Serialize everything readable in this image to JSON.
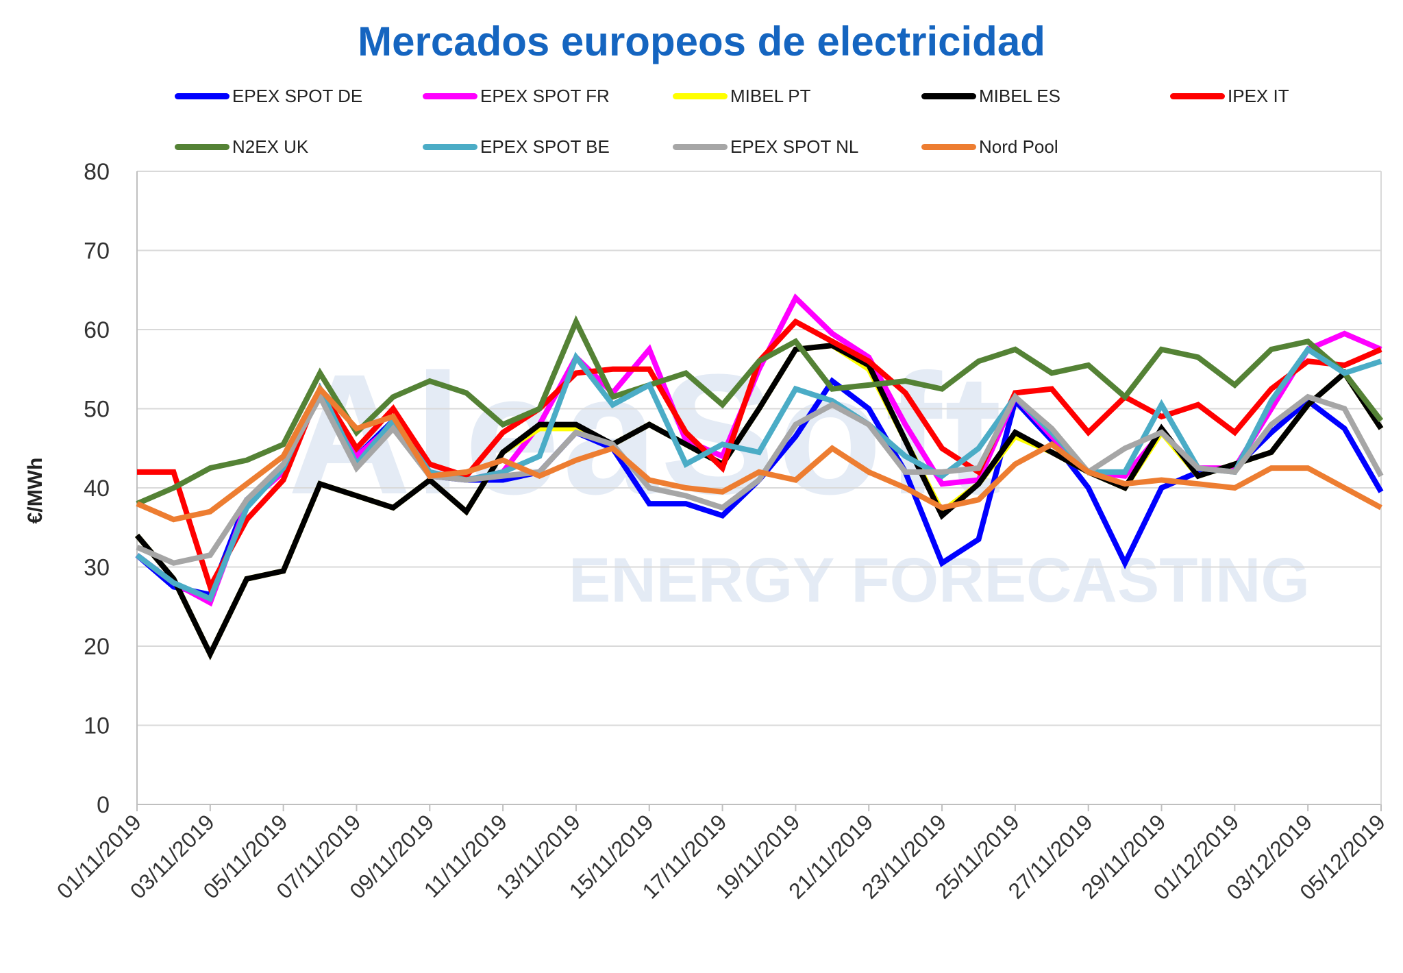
{
  "title": "Mercados europeos de electricidad",
  "watermark": {
    "brand": "AleaSoft",
    "tagline": "ENERGY FORECASTING"
  },
  "chart_data": {
    "type": "line",
    "title": "Mercados europeos de electricidad",
    "xlabel": "",
    "ylabel": "€/MWh",
    "ylim": [
      0,
      80
    ],
    "yticks": [
      "0",
      "10",
      "20",
      "30",
      "40",
      "50",
      "60",
      "70",
      "80"
    ],
    "grid": true,
    "legend_position": "top",
    "x": [
      "01/11/2019",
      "02/11/2019",
      "03/11/2019",
      "04/11/2019",
      "05/11/2019",
      "06/11/2019",
      "07/11/2019",
      "08/11/2019",
      "09/11/2019",
      "10/11/2019",
      "11/11/2019",
      "12/11/2019",
      "13/11/2019",
      "14/11/2019",
      "15/11/2019",
      "16/11/2019",
      "17/11/2019",
      "18/11/2019",
      "19/11/2019",
      "20/11/2019",
      "21/11/2019",
      "22/11/2019",
      "23/11/2019",
      "24/11/2019",
      "25/11/2019",
      "26/11/2019",
      "27/11/2019",
      "28/11/2019",
      "29/11/2019",
      "30/11/2019",
      "01/12/2019",
      "02/12/2019",
      "03/12/2019",
      "04/12/2019",
      "05/12/2019"
    ],
    "xticks": [
      "01/11/2019",
      "03/11/2019",
      "05/11/2019",
      "07/11/2019",
      "09/11/2019",
      "11/11/2019",
      "13/11/2019",
      "15/11/2019",
      "17/11/2019",
      "19/11/2019",
      "21/11/2019",
      "23/11/2019",
      "25/11/2019",
      "27/11/2019",
      "29/11/2019",
      "01/12/2019",
      "03/12/2019",
      "05/12/2019"
    ],
    "series": [
      {
        "name": "EPEX SPOT DE",
        "color": "#0000ff",
        "values": [
          31.5,
          27.5,
          26.5,
          38.5,
          42.5,
          52.0,
          44.0,
          48.5,
          41.5,
          41.0,
          41.0,
          42.0,
          47.0,
          45.0,
          38.0,
          38.0,
          36.5,
          41.0,
          46.5,
          53.5,
          50.0,
          42.0,
          30.5,
          33.5,
          51.0,
          46.0,
          40.0,
          30.5,
          40.0,
          42.0,
          42.5,
          47.0,
          51.0,
          47.5,
          39.5
        ]
      },
      {
        "name": "EPEX SPOT FR",
        "color": "#ff00ff",
        "values": [
          31.5,
          28.0,
          25.5,
          38.0,
          42.0,
          52.0,
          44.0,
          48.0,
          42.0,
          41.0,
          42.0,
          48.0,
          56.5,
          52.0,
          57.5,
          46.0,
          44.0,
          55.0,
          64.0,
          59.5,
          56.5,
          48.0,
          40.5,
          41.0,
          51.5,
          46.5,
          42.0,
          41.5,
          47.0,
          42.5,
          42.5,
          50.0,
          57.5,
          59.5,
          57.5
        ]
      },
      {
        "name": "MIBEL PT",
        "color": "#ffff00",
        "values": [
          34.0,
          28.5,
          19.0,
          28.5,
          29.5,
          40.5,
          39.0,
          37.5,
          41.0,
          37.0,
          44.5,
          47.5,
          47.5,
          45.5,
          48.0,
          45.5,
          43.0,
          50.0,
          57.5,
          58.0,
          55.0,
          46.0,
          37.0,
          40.5,
          46.5,
          44.5,
          42.0,
          40.0,
          47.0,
          41.5,
          43.0,
          44.5,
          50.5,
          54.5,
          47.5
        ]
      },
      {
        "name": "MIBEL ES",
        "color": "#000000",
        "values": [
          34.0,
          28.5,
          19.0,
          28.5,
          29.5,
          40.5,
          39.0,
          37.5,
          41.0,
          37.0,
          44.5,
          48.0,
          48.0,
          45.5,
          48.0,
          45.5,
          43.0,
          50.0,
          57.5,
          58.0,
          55.5,
          46.0,
          36.5,
          40.5,
          47.0,
          44.5,
          42.0,
          40.0,
          47.5,
          41.5,
          43.0,
          44.5,
          50.5,
          54.5,
          47.5
        ]
      },
      {
        "name": "IPEX IT",
        "color": "#ff0000",
        "values": [
          42.0,
          42.0,
          27.5,
          36.0,
          41.0,
          52.5,
          45.0,
          50.0,
          43.0,
          41.5,
          47.0,
          50.0,
          54.5,
          55.0,
          55.0,
          47.0,
          42.5,
          56.0,
          61.0,
          58.5,
          56.0,
          52.0,
          45.0,
          42.0,
          52.0,
          52.5,
          47.0,
          51.5,
          49.0,
          50.5,
          47.0,
          52.5,
          56.0,
          55.5,
          57.5
        ]
      },
      {
        "name": "N2EX UK",
        "color": "#548235",
        "values": [
          38.0,
          40.0,
          42.5,
          43.5,
          45.5,
          54.5,
          47.0,
          51.5,
          53.5,
          52.0,
          48.0,
          50.0,
          61.0,
          51.5,
          53.0,
          54.5,
          50.5,
          56.0,
          58.5,
          52.5,
          53.0,
          53.5,
          52.5,
          56.0,
          57.5,
          54.5,
          55.5,
          51.5,
          57.5,
          56.5,
          53.0,
          57.5,
          58.5,
          54.5,
          48.5
        ]
      },
      {
        "name": "EPEX SPOT BE",
        "color": "#4bacc6",
        "values": [
          31.5,
          28.0,
          26.0,
          37.5,
          42.5,
          52.5,
          43.0,
          48.5,
          42.0,
          41.0,
          42.0,
          44.0,
          56.5,
          50.5,
          53.0,
          43.0,
          45.5,
          44.5,
          52.5,
          51.0,
          48.0,
          44.0,
          41.5,
          45.0,
          51.5,
          47.0,
          42.0,
          42.0,
          50.5,
          42.5,
          42.0,
          51.0,
          57.5,
          54.5,
          56.0
        ]
      },
      {
        "name": "EPEX SPOT NL",
        "color": "#a6a6a6",
        "values": [
          32.5,
          30.5,
          31.5,
          38.5,
          43.0,
          51.5,
          42.5,
          47.5,
          41.5,
          41.0,
          41.5,
          42.0,
          47.0,
          45.5,
          40.0,
          39.0,
          37.5,
          41.0,
          48.0,
          50.5,
          48.0,
          42.0,
          42.0,
          42.5,
          51.5,
          47.5,
          42.0,
          45.0,
          47.0,
          42.5,
          42.0,
          48.0,
          51.5,
          50.0,
          41.5
        ]
      },
      {
        "name": "Nord Pool",
        "color": "#ed7d31",
        "values": [
          38.0,
          36.0,
          37.0,
          40.5,
          44.0,
          52.5,
          47.5,
          49.0,
          41.5,
          42.0,
          43.5,
          41.5,
          43.5,
          45.0,
          41.0,
          40.0,
          39.5,
          42.0,
          41.0,
          45.0,
          42.0,
          40.0,
          37.5,
          38.5,
          43.0,
          45.5,
          42.0,
          40.5,
          41.0,
          40.5,
          40.0,
          42.5,
          42.5,
          40.0,
          37.5
        ]
      }
    ]
  }
}
